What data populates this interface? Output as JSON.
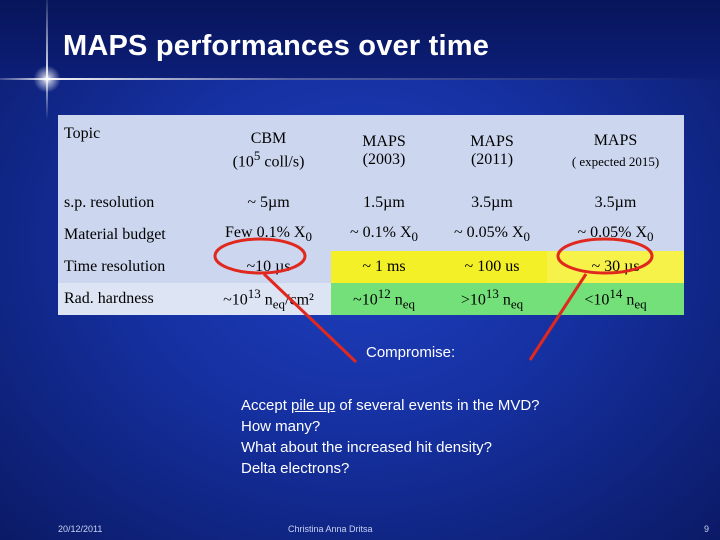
{
  "slide": {
    "title": "MAPS performances over time",
    "compromise_label": "Compromise:",
    "notes": {
      "line1_prefix": "Accept ",
      "line1_link": "pile up",
      "line1_suffix": " of several events in the MVD?",
      "line2": "How many?",
      "line3": "What about the increased hit density?",
      "line4": "Delta electrons?"
    },
    "footer": {
      "date": "20/12/2011",
      "author": "Christina Anna Dritsa",
      "page": "9"
    }
  },
  "table": {
    "header": {
      "topic": "Topic",
      "cbm_line1": "CBM",
      "cbm_line2_pre": "(10",
      "cbm_line2_sup": "5",
      "cbm_line2_post": " coll/s)",
      "maps2003_line1": "MAPS",
      "maps2003_line2": "(2003)",
      "maps2011_line1": "MAPS",
      "maps2011_line2": "(2011)",
      "expected_line1": "MAPS",
      "expected_line2": "( expected 2015)"
    },
    "rows": {
      "resolution": {
        "topic": "s.p. resolution",
        "cbm": "~ 5µm",
        "maps2003": "1.5µm",
        "maps2011": "3.5µm",
        "expected": "3.5µm"
      },
      "material": {
        "topic": "Material budget",
        "cbm_pre": "Few 0.1% X",
        "cbm_sub": "0",
        "maps2003_pre": "~ 0.1% X",
        "maps2003_sub": "0",
        "maps2011_pre": "~ 0.05% X",
        "maps2011_sub": "0",
        "expected_pre": "~ 0.05% X",
        "expected_sub": "0"
      },
      "time": {
        "topic": "Time resolution",
        "cbm": "~10 µs",
        "maps2003": "~ 1 ms",
        "maps2011": "~ 100 us",
        "expected": "~ 30 µs"
      },
      "rad": {
        "topic": "Rad. hardness",
        "cbm_pre": "~10",
        "cbm_sup": "13",
        "cbm_mid": " n",
        "cbm_sub": "eq",
        "cbm_post": "/cm²",
        "maps2003_pre": "~10",
        "maps2003_sup": "12",
        "maps2003_mid": " n",
        "maps2003_sub": "eq",
        "maps2011_pre": ">10",
        "maps2011_sup": "13",
        "maps2011_mid": " n",
        "maps2011_sub": "eq",
        "expected_pre": "<10",
        "expected_sup": "14",
        "expected_mid": " n",
        "expected_sub": "eq"
      }
    }
  },
  "colors": {
    "table_bg": "#ccd7ef",
    "highlight_yellow": "#f3f028",
    "highlight_green": "#74e07a",
    "annotation_red": "#e0281e"
  }
}
